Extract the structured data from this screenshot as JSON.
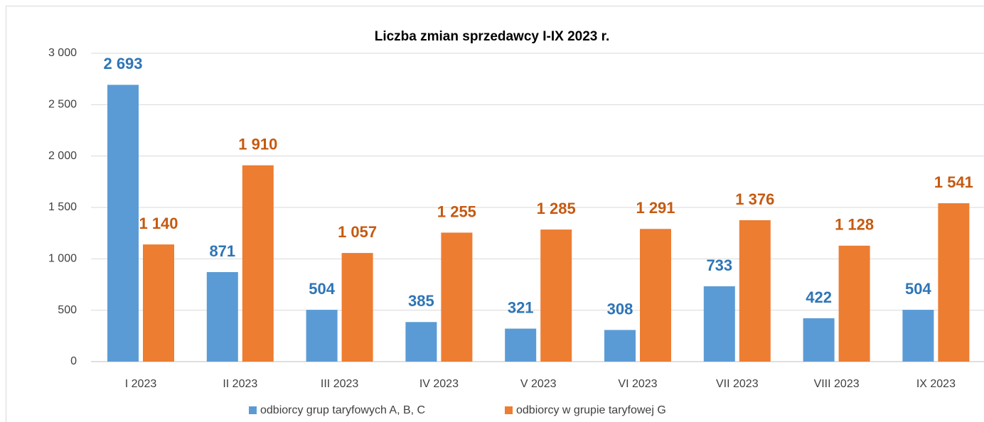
{
  "chart_data": {
    "type": "bar",
    "title": "Liczba zmian sprzedawcy I-IX 2023 r.",
    "categories": [
      "I 2023",
      "II 2023",
      "III 2023",
      "IV 2023",
      "V 2023",
      "VI 2023",
      "VII 2023",
      "VIII 2023",
      "IX 2023"
    ],
    "series": [
      {
        "name": "odbiorcy grup taryfowych A, B, C",
        "color": "#5b9bd5",
        "label_color": "#2e75b6",
        "values": [
          2693,
          871,
          504,
          385,
          321,
          308,
          733,
          422,
          504
        ],
        "value_labels": [
          "2 693",
          "871",
          "504",
          "385",
          "321",
          "308",
          "733",
          "422",
          "504"
        ]
      },
      {
        "name": "odbiorcy w grupie taryfowej G",
        "color": "#ed7d31",
        "label_color": "#c55a11",
        "values": [
          1140,
          1910,
          1057,
          1255,
          1285,
          1291,
          1376,
          1128,
          1541
        ],
        "value_labels": [
          "1 140",
          "1 910",
          "1 057",
          "1 255",
          "1 285",
          "1 291",
          "1 376",
          "1 128",
          "1 541"
        ]
      }
    ],
    "ylim": [
      0,
      3000
    ],
    "yticks": [
      0,
      500,
      {
        "value": 1000,
        "label": "1 000"
      },
      {
        "value": 1500,
        "label": "1 500"
      },
      {
        "value": 2000,
        "label": "2 000"
      },
      {
        "value": 2500,
        "label": "2 500"
      },
      {
        "value": 3000,
        "label": "3 000"
      }
    ],
    "grid": true,
    "legend": "bottom"
  }
}
